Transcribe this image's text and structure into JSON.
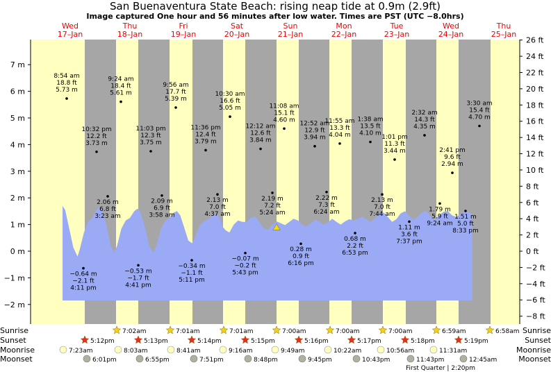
{
  "title": "San Buenaventura State Beach: rising  neap tide at 0.9m (2.9ft)",
  "subtitle": "Image captured One hour and 56 minutes after low water. Times are PST (UTC −8.0hrs)",
  "colors": {
    "day": "#ffffc0",
    "night": "#a6a6a6",
    "water": "#9aaaf4",
    "day_label": "#ee0000",
    "sun_star": "#f0d020",
    "sunset_star": "#e03020",
    "moon_light": "#ffffc0",
    "moon_dark": "#b0b0a0",
    "current_marker": "#f0e000"
  },
  "days": [
    {
      "dow": "Wed",
      "date": "17–Jan"
    },
    {
      "dow": "Thu",
      "date": "18–Jan"
    },
    {
      "dow": "Fri",
      "date": "19–Jan"
    },
    {
      "dow": "Sat",
      "date": "20–Jan"
    },
    {
      "dow": "Sun",
      "date": "21–Jan"
    },
    {
      "dow": "Mon",
      "date": "22–Jan"
    },
    {
      "dow": "Tue",
      "date": "23–Jan"
    },
    {
      "dow": "Wed",
      "date": "24–Jan"
    },
    {
      "dow": "Thu",
      "date": "25–Jan"
    }
  ],
  "chart_data": {
    "type": "area",
    "title": "San Buenaventura State Beach: rising  neap tide at 0.9m (2.9ft)",
    "x_unit": "days from 17-Jan 00:00 PST",
    "y_left": {
      "unit": "m",
      "range": [
        -2.4,
        7.75
      ],
      "ticks": [
        -2,
        -1,
        0,
        1,
        2,
        3,
        4,
        5,
        6,
        7
      ],
      "tick_labels": [
        "−2 m",
        "−1 m",
        "0 m",
        "1 m",
        "2 m",
        "3 m",
        "4 m",
        "5 m",
        "6 m",
        "7 m"
      ]
    },
    "y_right": {
      "unit": "ft",
      "ticks": [
        -8,
        -6,
        -4,
        -2,
        0,
        2,
        4,
        6,
        8,
        10,
        12,
        14,
        16,
        18,
        20,
        22,
        24,
        26
      ],
      "tick_labels": [
        "−8 ft",
        "−6 ft",
        "−4 ft",
        "−2 ft",
        "0 ft",
        "2 ft",
        "4 ft",
        "6 ft",
        "8 ft",
        "10 ft",
        "12 ft",
        "14 ft",
        "16 ft",
        "18 ft",
        "20 ft",
        "22 ft",
        "24 ft",
        "26 ft"
      ]
    },
    "grid": false,
    "current": {
      "time": "21-Jan 07:12",
      "height_m": 0.9,
      "height_ft": 2.9
    },
    "extremes": [
      {
        "type": "high",
        "time": "8:54 am",
        "ft": "18.8 ft",
        "m": "5.73 m",
        "height_m": 5.73
      },
      {
        "type": "low",
        "time": "4:11 pm",
        "ft": "−2.1 ft",
        "m": "−0.64 m",
        "height_m": -0.64
      },
      {
        "type": "high",
        "time": "10:32 pm",
        "ft": "12.2 ft",
        "m": "3.73 m",
        "height_m": 3.73
      },
      {
        "type": "low",
        "time": "3:23 am",
        "ft": "6.8 ft",
        "m": "2.06 m",
        "height_m": 2.06
      },
      {
        "type": "high",
        "time": "9:24 am",
        "ft": "18.4 ft",
        "m": "5.61 m",
        "height_m": 5.61
      },
      {
        "type": "low",
        "time": "4:41 pm",
        "ft": "−1.7 ft",
        "m": "−0.53 m",
        "height_m": -0.53
      },
      {
        "type": "high",
        "time": "11:03 pm",
        "ft": "12.3 ft",
        "m": "3.75 m",
        "height_m": 3.75
      },
      {
        "type": "low",
        "time": "3:58 am",
        "ft": "6.9 ft",
        "m": "2.09 m",
        "height_m": 2.09
      },
      {
        "type": "high",
        "time": "9:56 am",
        "ft": "17.7 ft",
        "m": "5.39 m",
        "height_m": 5.39
      },
      {
        "type": "low",
        "time": "5:11 pm",
        "ft": "−1.1 ft",
        "m": "−0.34 m",
        "height_m": -0.34
      },
      {
        "type": "high",
        "time": "11:36 pm",
        "ft": "12.4 ft",
        "m": "3.79 m",
        "height_m": 3.79
      },
      {
        "type": "low",
        "time": "4:37 am",
        "ft": "7.0 ft",
        "m": "2.13 m",
        "height_m": 2.13
      },
      {
        "type": "high",
        "time": "10:30 am",
        "ft": "16.6 ft",
        "m": "5.05 m",
        "height_m": 5.05
      },
      {
        "type": "low",
        "time": "5:43 pm",
        "ft": "−0.2 ft",
        "m": "−0.07 m",
        "height_m": -0.07
      },
      {
        "type": "high",
        "time": "12:12 am",
        "ft": "12.6 ft",
        "m": "3.84 m",
        "height_m": 3.84
      },
      {
        "type": "low",
        "time": "5:24 am",
        "ft": "7.2 ft",
        "m": "2.19 m",
        "height_m": 2.19
      },
      {
        "type": "high",
        "time": "11:08 am",
        "ft": "15.1 ft",
        "m": "4.60 m",
        "height_m": 4.6
      },
      {
        "type": "low",
        "time": "6:16 pm",
        "ft": "0.9 ft",
        "m": "0.28 m",
        "height_m": 0.28
      },
      {
        "type": "high",
        "time": "12:52 am",
        "ft": "12.9 ft",
        "m": "3.94 m",
        "height_m": 3.94
      },
      {
        "type": "low",
        "time": "6:24 am",
        "ft": "7.3 ft",
        "m": "2.22 m",
        "height_m": 2.22
      },
      {
        "type": "high",
        "time": "11:55 am",
        "ft": "13.3 ft",
        "m": "4.04 m",
        "height_m": 4.04
      },
      {
        "type": "low",
        "time": "6:53 pm",
        "ft": "2.2 ft",
        "m": "0.68 m",
        "height_m": 0.68
      },
      {
        "type": "high",
        "time": "1:38 am",
        "ft": "13.5 ft",
        "m": "4.10 m",
        "height_m": 4.1
      },
      {
        "type": "low",
        "time": "7:44 am",
        "ft": "7.0 ft",
        "m": "2.13 m",
        "height_m": 2.13
      },
      {
        "type": "high",
        "time": "1:01 pm",
        "ft": "11.3 ft",
        "m": "3.44 m",
        "height_m": 3.44
      },
      {
        "type": "low",
        "time": "7:37 pm",
        "ft": "3.6 ft",
        "m": "1.11 m",
        "height_m": 1.11
      },
      {
        "type": "high",
        "time": "2:32 am",
        "ft": "14.3 ft",
        "m": "4.35 m",
        "height_m": 4.35
      },
      {
        "type": "low",
        "time": "9:24 am",
        "ft": "5.9 ft",
        "m": "1.79 m",
        "height_m": 1.79
      },
      {
        "type": "high",
        "time": "2:41 pm",
        "ft": "9.6 ft",
        "m": "2.94 m",
        "height_m": 2.94
      },
      {
        "type": "low",
        "time": "8:33 pm",
        "ft": "5.0 ft",
        "m": "1.51 m",
        "height_m": 1.51
      },
      {
        "type": "high",
        "time": "3:30 am",
        "ft": "15.4 ft",
        "m": "4.70 m",
        "height_m": 4.7
      }
    ],
    "water_curve": {
      "description": "smoothed water-level fill over the displayed window",
      "points_m": [
        [
          0.0,
          1.7
        ],
        [
          0.05,
          1.55
        ],
        [
          0.12,
          0.9
        ],
        [
          0.2,
          0.15
        ],
        [
          0.28,
          -0.2
        ],
        [
          0.32,
          0.05
        ],
        [
          0.4,
          0.7
        ],
        [
          0.48,
          1.12
        ],
        [
          0.56,
          1.25
        ],
        [
          0.62,
          1.5
        ],
        [
          0.68,
          1.65
        ],
        [
          0.74,
          1.55
        ],
        [
          0.82,
          1.0
        ],
        [
          0.9,
          0.2
        ],
        [
          0.97,
          -0.05
        ],
        [
          1.02,
          0.2
        ],
        [
          1.1,
          0.85
        ],
        [
          1.18,
          1.15
        ],
        [
          1.26,
          1.25
        ],
        [
          1.34,
          1.5
        ],
        [
          1.4,
          1.6
        ],
        [
          1.46,
          1.45
        ],
        [
          1.54,
          0.9
        ],
        [
          1.62,
          0.2
        ],
        [
          1.7,
          -0.05
        ],
        [
          1.76,
          0.25
        ],
        [
          1.84,
          0.85
        ],
        [
          1.92,
          1.15
        ],
        [
          2.0,
          1.25
        ],
        [
          2.08,
          1.45
        ],
        [
          2.14,
          1.5
        ],
        [
          2.2,
          1.35
        ],
        [
          2.28,
          0.85
        ],
        [
          2.35,
          0.4
        ],
        [
          2.42,
          0.3
        ],
        [
          2.48,
          0.55
        ],
        [
          2.56,
          0.95
        ],
        [
          2.64,
          1.12
        ],
        [
          2.72,
          1.2
        ],
        [
          2.8,
          1.35
        ],
        [
          2.88,
          1.4
        ],
        [
          2.94,
          1.25
        ],
        [
          3.0,
          0.9
        ],
        [
          3.05,
          0.78
        ],
        [
          3.12,
          0.7
        ],
        [
          3.2,
          1.0
        ],
        [
          3.28,
          1.15
        ],
        [
          3.36,
          1.1
        ],
        [
          3.44,
          1.1
        ],
        [
          3.52,
          1.25
        ],
        [
          3.6,
          1.3
        ],
        [
          3.68,
          1.1
        ],
        [
          3.76,
          0.85
        ],
        [
          3.84,
          0.8
        ],
        [
          3.92,
          1.0
        ],
        [
          4.0,
          1.12
        ],
        [
          4.08,
          1.05
        ],
        [
          4.16,
          0.98
        ],
        [
          4.24,
          1.1
        ],
        [
          4.32,
          1.22
        ],
        [
          4.4,
          1.15
        ],
        [
          4.48,
          1.0
        ],
        [
          4.56,
          0.92
        ],
        [
          4.64,
          1.05
        ],
        [
          4.72,
          1.18
        ],
        [
          4.8,
          1.12
        ],
        [
          4.88,
          1.0
        ],
        [
          4.96,
          1.08
        ],
        [
          5.04,
          1.22
        ],
        [
          5.12,
          1.1
        ],
        [
          5.2,
          1.0
        ],
        [
          5.28,
          1.12
        ],
        [
          5.36,
          1.2
        ],
        [
          5.44,
          1.15
        ],
        [
          5.52,
          1.22
        ],
        [
          5.6,
          1.3
        ],
        [
          5.68,
          1.2
        ],
        [
          5.76,
          1.1
        ],
        [
          5.84,
          1.25
        ],
        [
          5.92,
          1.4
        ],
        [
          6.0,
          1.45
        ],
        [
          6.08,
          1.28
        ],
        [
          6.16,
          1.1
        ],
        [
          6.24,
          1.2
        ],
        [
          6.32,
          1.42
        ],
        [
          6.4,
          1.5
        ],
        [
          6.48,
          1.32
        ],
        [
          6.56,
          1.18
        ],
        [
          6.64,
          1.3
        ],
        [
          6.72,
          1.45
        ],
        [
          6.8,
          1.52
        ],
        [
          6.88,
          1.3
        ],
        [
          6.96,
          1.2
        ],
        [
          7.04,
          1.35
        ],
        [
          7.12,
          1.48
        ],
        [
          7.2,
          1.5
        ],
        [
          7.28,
          1.35
        ],
        [
          7.36,
          1.28
        ],
        [
          7.44,
          1.4
        ],
        [
          7.52,
          1.5
        ],
        [
          7.6,
          1.45
        ],
        [
          7.66,
          1.38
        ]
      ]
    }
  },
  "rows": {
    "sunrise": "Sunrise",
    "sunset": "Sunset",
    "moonrise": "Moonrise",
    "moonset": "Moonset"
  },
  "sunrise_times": [
    "7:02am",
    "7:01am",
    "7:01am",
    "7:00am",
    "7:00am",
    "7:00am",
    "6:59am",
    "6:58am"
  ],
  "sunset_times": [
    "5:12pm",
    "5:13pm",
    "5:14pm",
    "5:15pm",
    "5:16pm",
    "5:17pm",
    "5:18pm",
    "5:19pm"
  ],
  "moonrise_times": [
    "7:23am",
    "8:03am",
    "8:41am",
    "9:16am",
    "9:49am",
    "10:22am",
    "10:56am",
    "11:31am"
  ],
  "moonset_times": [
    "6:01pm",
    "6:55pm",
    "7:51pm",
    "8:48pm",
    "9:45pm",
    "10:43pm",
    "11:43pm",
    "12:45am"
  ],
  "moon_phase_note": "First Quarter | 2:20pm"
}
